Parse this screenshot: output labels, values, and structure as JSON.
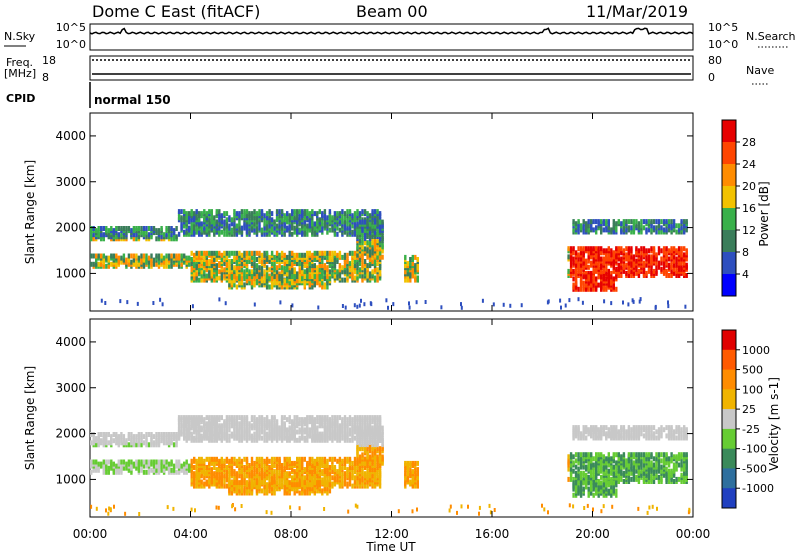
{
  "header": {
    "station": "Dome C East (fitACF)",
    "beam": "Beam 00",
    "date": "11/Mar/2019"
  },
  "aux_panels": {
    "nsky_label": "N.Sky",
    "nsky_ticks": [
      "10^5",
      "10^0"
    ],
    "nsearch_label": "N.Search",
    "nsearch_ticks": [
      "10^5",
      "10^0"
    ],
    "freq_label": "Freq.",
    "freq_unit": "[MHz]",
    "freq_ticks": [
      "18",
      "8"
    ],
    "nave_label": "Nave",
    "nave_ticks": [
      "80",
      "0"
    ],
    "cpid_label": "CPID",
    "cpid_value": "normal 150"
  },
  "chart_data": [
    {
      "type": "heatmap",
      "name": "power",
      "ylabel": "Slant Range [km]",
      "xlabel": "Time UT",
      "ylim": [
        180,
        4500
      ],
      "xlim": [
        0,
        24
      ],
      "y_ticks": [
        1000,
        2000,
        3000,
        4000
      ],
      "x_ticks": [
        "00:00",
        "04:00",
        "08:00",
        "12:00",
        "16:00",
        "20:00",
        "00:00"
      ],
      "colorbar_label": "Power [dB]",
      "colorbar_ticks": [
        "28",
        "24",
        "20",
        "16",
        "12",
        "8",
        "4"
      ],
      "colors": [
        "#0000ff",
        "#2e4fbf",
        "#3a7d5a",
        "#39b04a",
        "#f2c200",
        "#ff8c00",
        "#ff4500",
        "#e60000"
      ]
    },
    {
      "type": "heatmap",
      "name": "velocity",
      "ylabel": "Slant Range [km]",
      "xlabel": "Time UT",
      "ylim": [
        180,
        4500
      ],
      "xlim": [
        0,
        24
      ],
      "y_ticks": [
        1000,
        2000,
        3000,
        4000
      ],
      "x_ticks": [
        "00:00",
        "04:00",
        "08:00",
        "12:00",
        "16:00",
        "20:00",
        "00:00"
      ],
      "colorbar_label": "Velocity [m s-1]",
      "colorbar_ticks": [
        "1000",
        "500",
        "100",
        "25",
        "-25",
        "-100",
        "-500",
        "-1000"
      ],
      "colors": [
        "#2040c0",
        "#2e6f9e",
        "#3a8a5a",
        "#66cc33",
        "#c8c8c8",
        "#f0b400",
        "#ff8c00",
        "#ff5a00",
        "#e00000"
      ]
    }
  ]
}
